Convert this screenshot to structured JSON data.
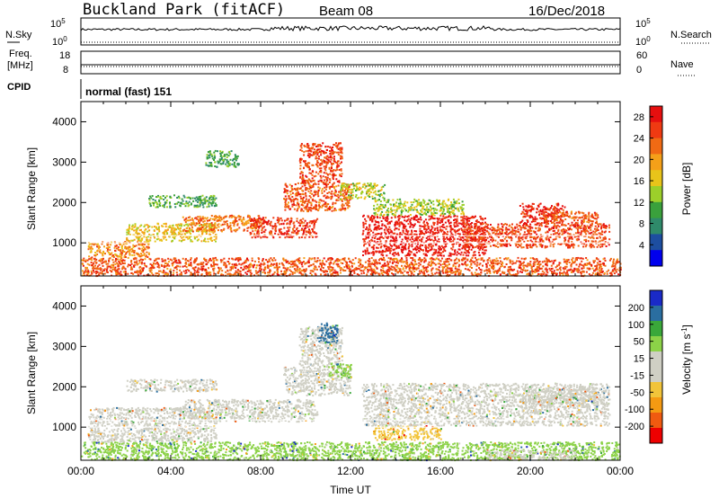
{
  "header": {
    "station": "Buckland Park (fitACF)",
    "beam": "Beam 08",
    "date": "16/Dec/2018"
  },
  "top_panels": {
    "nsky_label": "N.Sky",
    "nsky_top": "10^5",
    "nsky_bottom": "10^0",
    "nsearch_label": "N.Search",
    "nsearch_top": "10^5",
    "nsearch_bottom": "10^0",
    "freq_label": "Freq.",
    "freq_unit": "[MHz]",
    "freq_top": "18",
    "freq_bottom": "8",
    "nave_label": "Nave",
    "nave_top": "60",
    "nave_bottom": "0",
    "cpid_label": "CPID",
    "cpid_value": "normal (fast) 151"
  },
  "colors": {
    "power_scale": [
      "#0000ee",
      "#1d4ea0",
      "#2f8a6a",
      "#3aa03c",
      "#9ccf2a",
      "#e8c41a",
      "#f5a019",
      "#f06a14",
      "#ef3a12",
      "#e60f0f"
    ],
    "velocity_scale": [
      "#ee0000",
      "#f05a10",
      "#f59a12",
      "#f2c43a",
      "#cfcfc4",
      "#cfcfc4",
      "#8cd248",
      "#3aa83a",
      "#2a6ea0",
      "#1a2ac8"
    ]
  },
  "chart_data": [
    {
      "type": "heatmap",
      "name": "power",
      "ylabel": "Slant Range [km]",
      "xlabel": "",
      "y_ticks": [
        "1000",
        "2000",
        "3000",
        "4000"
      ],
      "x_range_hours": [
        0,
        24
      ],
      "ylim": [
        180,
        4500
      ],
      "colorbar": {
        "label": "Power [dB]",
        "ticks": [
          "4",
          "8",
          "12",
          "16",
          "20",
          "24",
          "28"
        ],
        "range": [
          0,
          30
        ]
      },
      "regions": [
        {
          "t": [
            0.0,
            24.0
          ],
          "r": [
            200,
            650
          ],
          "v": 24
        },
        {
          "t": [
            0.3,
            3.0
          ],
          "r": [
            650,
            1050
          ],
          "v": 21
        },
        {
          "t": [
            2.0,
            6.0
          ],
          "r": [
            1050,
            1500
          ],
          "v": 17
        },
        {
          "t": [
            4.5,
            8.0
          ],
          "r": [
            1300,
            1700
          ],
          "v": 22
        },
        {
          "t": [
            7.5,
            10.5
          ],
          "r": [
            1150,
            1650
          ],
          "v": 26
        },
        {
          "t": [
            9.0,
            12.0
          ],
          "r": [
            1800,
            2500
          ],
          "v": 24
        },
        {
          "t": [
            9.7,
            11.6
          ],
          "r": [
            2500,
            3500
          ],
          "v": 25
        },
        {
          "t": [
            12.5,
            18.0
          ],
          "r": [
            700,
            1700
          ],
          "v": 28
        },
        {
          "t": [
            13.0,
            17.0
          ],
          "r": [
            1700,
            2100
          ],
          "v": 14
        },
        {
          "t": [
            17.0,
            23.5
          ],
          "r": [
            900,
            1500
          ],
          "v": 25
        },
        {
          "t": [
            19.5,
            21.5
          ],
          "r": [
            1500,
            2000
          ],
          "v": 27
        },
        {
          "t": [
            20.5,
            23.0
          ],
          "r": [
            1500,
            1800
          ],
          "v": 24
        },
        {
          "t": [
            3.0,
            6.0
          ],
          "r": [
            1900,
            2200
          ],
          "v": 11
        },
        {
          "t": [
            5.5,
            7.0
          ],
          "r": [
            2900,
            3300
          ],
          "v": 10
        },
        {
          "t": [
            11.5,
            13.5
          ],
          "r": [
            2100,
            2500
          ],
          "v": 15
        }
      ]
    },
    {
      "type": "heatmap",
      "name": "velocity",
      "ylabel": "Slant Range [km]",
      "xlabel": "Time UT",
      "x_ticks": [
        "00:00",
        "04:00",
        "08:00",
        "12:00",
        "16:00",
        "20:00",
        "00:00"
      ],
      "y_ticks": [
        "1000",
        "2000",
        "3000",
        "4000"
      ],
      "x_range_hours": [
        0,
        24
      ],
      "ylim": [
        180,
        4500
      ],
      "colorbar": {
        "label": "Velocity [m s^-1]",
        "ticks": [
          "200",
          "100",
          "50",
          "15",
          "-15",
          "-50",
          "-100",
          "-200"
        ],
        "range": [
          -250,
          250
        ]
      },
      "regions": [
        {
          "t": [
            0.0,
            24.0
          ],
          "r": [
            200,
            650
          ],
          "v": 60
        },
        {
          "t": [
            0.3,
            6.0
          ],
          "r": [
            650,
            1500
          ],
          "v": 0
        },
        {
          "t": [
            4.5,
            10.5
          ],
          "r": [
            1150,
            1700
          ],
          "v": 0
        },
        {
          "t": [
            9.0,
            12.0
          ],
          "r": [
            1800,
            2500
          ],
          "v": 0
        },
        {
          "t": [
            9.7,
            11.6
          ],
          "r": [
            2500,
            3500
          ],
          "v": 0
        },
        {
          "t": [
            10.5,
            11.4
          ],
          "r": [
            3100,
            3600
          ],
          "v": 180
        },
        {
          "t": [
            11.0,
            12.0
          ],
          "r": [
            2250,
            2600
          ],
          "v": 70
        },
        {
          "t": [
            13.0,
            16.0
          ],
          "r": [
            700,
            1050
          ],
          "v": -60
        },
        {
          "t": [
            12.5,
            23.5
          ],
          "r": [
            1050,
            2100
          ],
          "v": 0
        },
        {
          "t": [
            19.5,
            23.0
          ],
          "r": [
            1500,
            2000
          ],
          "v": 5
        },
        {
          "t": [
            2.0,
            6.0
          ],
          "r": [
            1900,
            2200
          ],
          "v": 0
        },
        {
          "t": [
            18.0,
            22.0
          ],
          "r": [
            200,
            450
          ],
          "v": -40
        }
      ]
    }
  ]
}
